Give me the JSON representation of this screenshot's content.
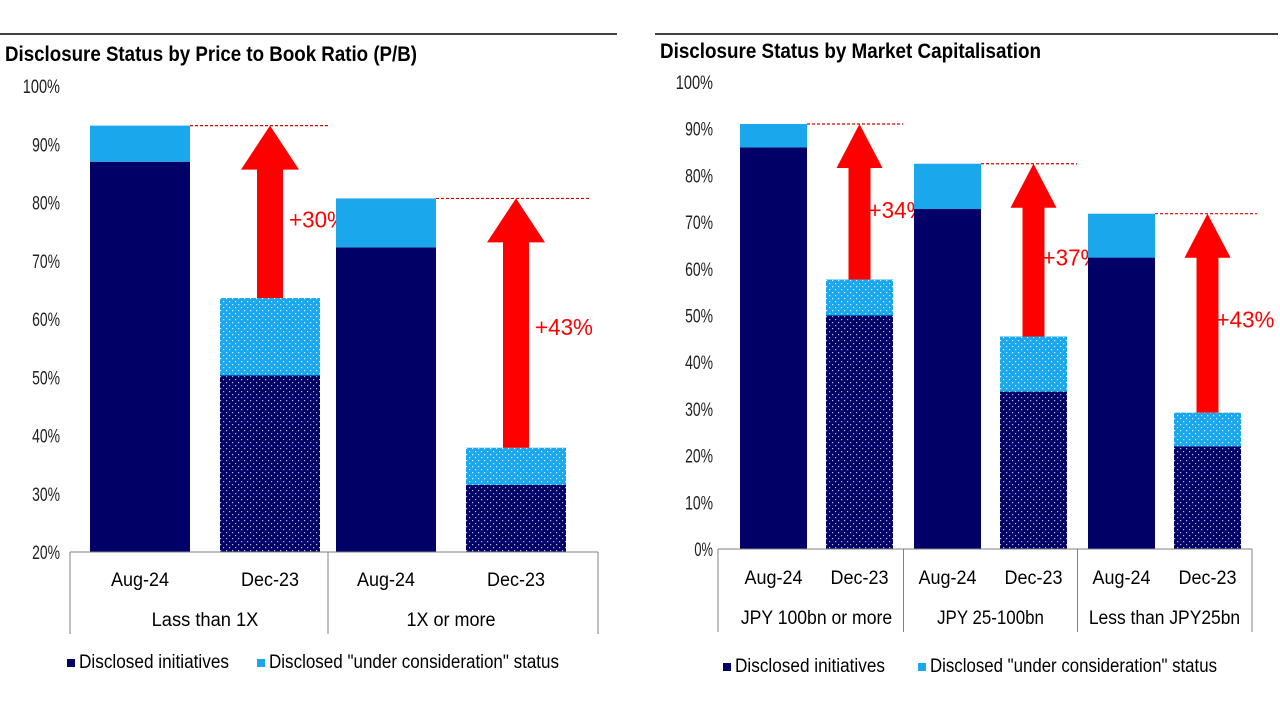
{
  "colors": {
    "disclosed": "#000066",
    "under_consideration": "#1aa7ec",
    "arrow": "#ff0000",
    "dashed_line": "#e00000",
    "axis": "#808080",
    "rule": "#000000"
  },
  "chart_data": [
    {
      "type": "bar",
      "stacked": true,
      "title": "Disclosure Status by Price to Book Ratio (P/B)",
      "ylim": [
        20,
        100
      ],
      "yticks": [
        "20%",
        "30%",
        "40%",
        "50%",
        "60%",
        "70%",
        "80%",
        "90%",
        "100%"
      ],
      "ytick_values": [
        20,
        30,
        40,
        50,
        60,
        70,
        80,
        90,
        100
      ],
      "groups": [
        {
          "label": "Lass than 1X",
          "bars": [
            {
              "label": "Aug-24",
              "disclosed": 87,
              "under_consideration": 6.2,
              "pattern": false
            },
            {
              "label": "Dec-23",
              "disclosed": 50.3,
              "under_consideration": 13.3,
              "pattern": true
            }
          ],
          "change": "+30%"
        },
        {
          "label": "1X or more",
          "bars": [
            {
              "label": "Aug-24",
              "disclosed": 72.3,
              "under_consideration": 8.4,
              "pattern": false
            },
            {
              "label": "Dec-23",
              "disclosed": 31.5,
              "under_consideration": 6.4,
              "pattern": true
            }
          ],
          "change": "+43%"
        }
      ],
      "legend": [
        "Disclosed initiatives",
        "Disclosed \"under consideration\" status"
      ]
    },
    {
      "type": "bar",
      "stacked": true,
      "title": "Disclosure Status by Market Capitalisation",
      "ylim": [
        0,
        100
      ],
      "yticks": [
        "0%",
        "10%",
        "20%",
        "30%",
        "40%",
        "50%",
        "60%",
        "70%",
        "80%",
        "90%",
        "100%"
      ],
      "ytick_values": [
        0,
        10,
        20,
        30,
        40,
        50,
        60,
        70,
        80,
        90,
        100
      ],
      "groups": [
        {
          "label": "JPY 100bn or more",
          "bars": [
            {
              "label": "Aug-24",
              "disclosed": 86,
              "under_consideration": 5,
              "pattern": false
            },
            {
              "label": "Dec-23",
              "disclosed": 50,
              "under_consideration": 7.7,
              "pattern": true
            }
          ],
          "change": "+34%"
        },
        {
          "label": "JPY 25-100bn",
          "bars": [
            {
              "label": "Aug-24",
              "disclosed": 72.8,
              "under_consideration": 9.7,
              "pattern": false
            },
            {
              "label": "Dec-23",
              "disclosed": 33.7,
              "under_consideration": 11.8,
              "pattern": true
            }
          ],
          "change": "+37%"
        },
        {
          "label": "Less than JPY25bn",
          "bars": [
            {
              "label": "Aug-24",
              "disclosed": 62.4,
              "under_consideration": 9.4,
              "pattern": false
            },
            {
              "label": "Dec-23",
              "disclosed": 22,
              "under_consideration": 7.2,
              "pattern": true
            }
          ],
          "change": "+43%"
        }
      ],
      "legend": [
        "Disclosed initiatives",
        "Disclosed \"under consideration\" status"
      ]
    }
  ]
}
